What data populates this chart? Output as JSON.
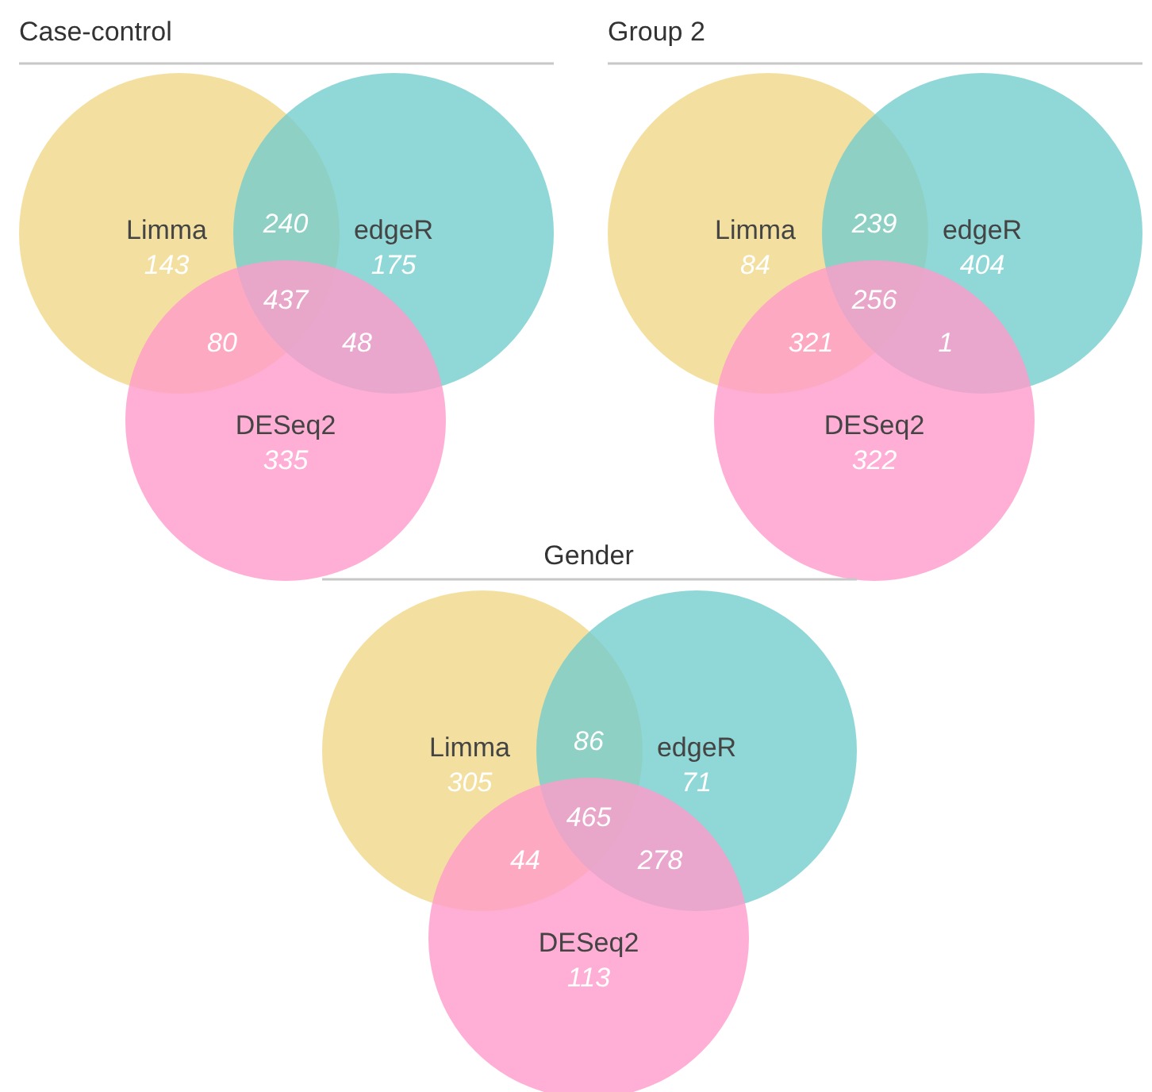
{
  "chart_data": [
    {
      "type": "other",
      "title": "Case-control",
      "categories": [
        "Limma",
        "edgeR",
        "DESeq2"
      ],
      "colors": [
        "#f0d88a",
        "#74cdcd",
        "#ff9bcb"
      ],
      "values": [
        143,
        175,
        335
      ],
      "data_labels": true,
      "annotations": [
        "240",
        "80",
        "48",
        "437"
      ]
    },
    {
      "type": "other",
      "title": "Group 2",
      "categories": [
        "Limma",
        "edgeR",
        "DESeq2"
      ],
      "colors": [
        "#f0d88a",
        "#74cdcd",
        "#ff9bcb"
      ],
      "values": [
        84,
        404,
        322
      ],
      "data_labels": true,
      "annotations": [
        "239",
        "321",
        "1",
        "256"
      ]
    },
    {
      "type": "other",
      "title": "Gender",
      "categories": [
        "Limma",
        "edgeR",
        "DESeq2"
      ],
      "colors": [
        "#f0d88a",
        "#74cdcd",
        "#ff9bcb"
      ],
      "values": [
        305,
        71,
        113
      ],
      "data_labels": true,
      "annotations": [
        "86",
        "44",
        "278",
        "465"
      ]
    }
  ]
}
